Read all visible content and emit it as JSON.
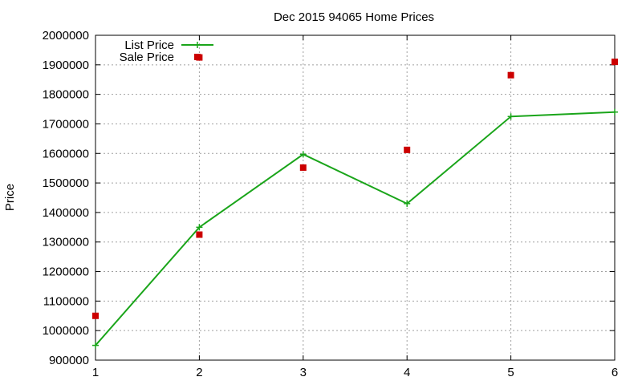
{
  "chart_data": {
    "type": "line",
    "title": "Dec 2015 94065 Home Prices",
    "xlabel": "",
    "ylabel": "Price",
    "x": [
      1,
      2,
      3,
      4,
      5,
      6
    ],
    "xlim": [
      1,
      6
    ],
    "ylim": [
      900000,
      2000000
    ],
    "xticks": [
      "1",
      "2",
      "3",
      "4",
      "5",
      "6"
    ],
    "yticks": [
      "900000",
      "1000000",
      "1100000",
      "1200000",
      "1300000",
      "1400000",
      "1500000",
      "1600000",
      "1700000",
      "1800000",
      "1900000",
      "2000000"
    ],
    "grid": true,
    "legend_position": "top-left",
    "series": [
      {
        "name": "List Price",
        "style": "line+cross",
        "color": "#1aa51a",
        "values": [
          950000,
          1350000,
          1597000,
          1430000,
          1725000,
          1740000
        ]
      },
      {
        "name": "Sale Price",
        "style": "square",
        "color": "#cc0000",
        "values": [
          1050000,
          1325000,
          1552000,
          1612000,
          1865000,
          1925000,
          1910000
        ],
        "x": [
          1,
          2,
          3,
          4,
          5,
          2,
          6
        ]
      }
    ]
  }
}
